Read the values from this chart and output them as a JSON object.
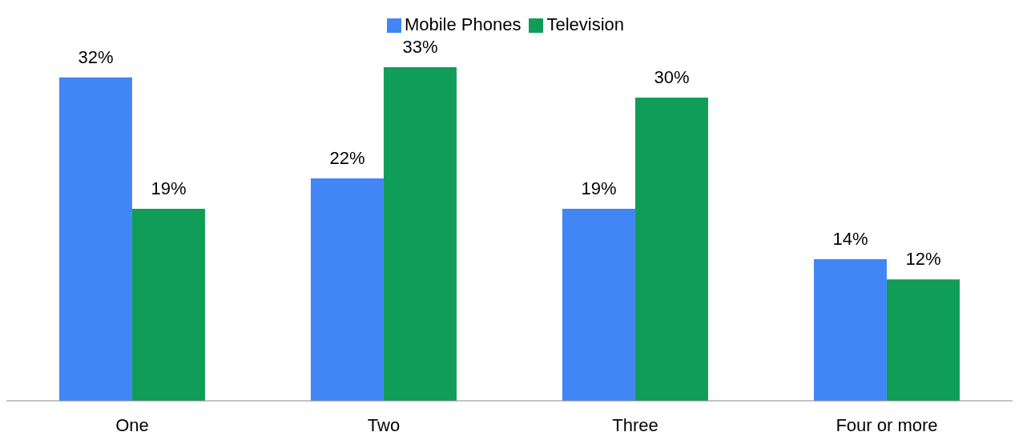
{
  "chart_data": {
    "type": "bar",
    "categories": [
      "One",
      "Two",
      "Three",
      "Four or more"
    ],
    "series": [
      {
        "name": "Mobile Phones",
        "color": "#4285f4",
        "values": [
          32,
          22,
          19,
          14
        ],
        "value_labels": [
          "32%",
          "22%",
          "19%",
          "14%"
        ]
      },
      {
        "name": "Television",
        "color": "#0f9d58",
        "values": [
          19,
          33,
          30,
          12
        ],
        "value_labels": [
          "19%",
          "33%",
          "30%",
          "12%"
        ]
      }
    ],
    "legend": "top",
    "grid": false
  }
}
